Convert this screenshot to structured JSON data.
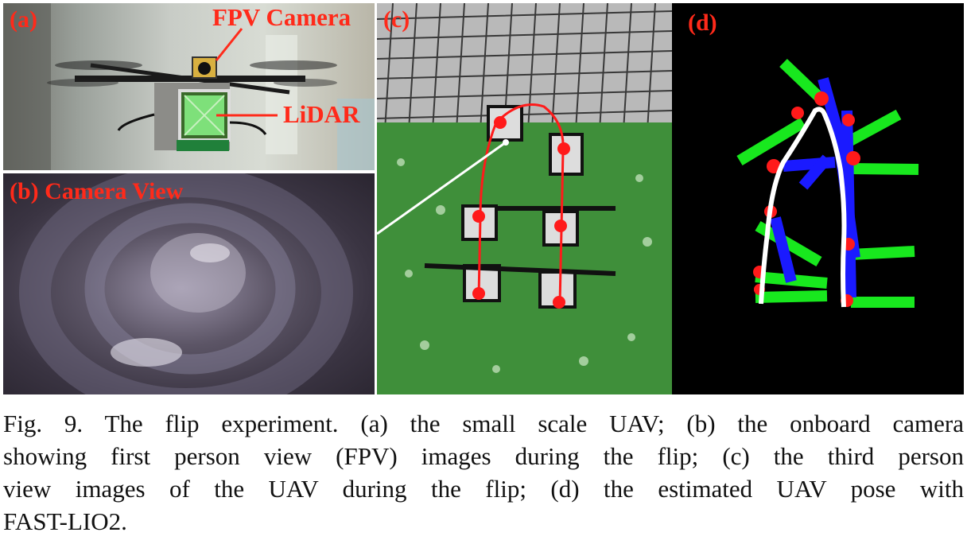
{
  "figure": {
    "panels": {
      "a": {
        "label": "(a)",
        "camera_annotation": "FPV Camera",
        "lidar_annotation": "LiDAR"
      },
      "b": {
        "label": "(b) Camera View"
      },
      "c": {
        "label": "(c)"
      },
      "d": {
        "label": "(d)"
      }
    },
    "caption_lines": [
      "Fig. 9.   The flip experiment. (a) the small scale UAV; (b) the onboard camera",
      "showing first person view (FPV) images during the flip; (c) the third person",
      "view images of the UAV during the flip; (d) the estimated UAV pose with",
      "FAST-LIO2."
    ]
  },
  "colors": {
    "label_red": "#ff2a1a",
    "green_mat": "#3f8f3a",
    "axis_green": "#18e81e",
    "axis_blue": "#1a1aff",
    "marker_red": "#ff1a1a"
  }
}
